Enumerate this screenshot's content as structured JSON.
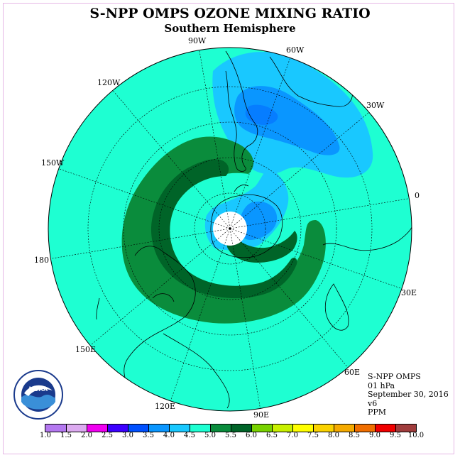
{
  "header": {
    "title": "S-NPP OMPS OZONE MIXING RATIO",
    "subtitle": "Southern Hemisphere"
  },
  "map": {
    "projection": "polar stereographic, South Pole centered",
    "longitude_labels": [
      "90W",
      "60W",
      "30W",
      "0",
      "30E",
      "60E",
      "90E",
      "120E",
      "150E",
      "180",
      "150W",
      "120W"
    ],
    "colors": {
      "ocean_background": "#1effd2",
      "band_5_0_to_5_5": "#0a8c3c",
      "band_5_5_to_6_0": "#006428",
      "band_4_0_to_4_5": "#19c8ff",
      "band_3_5_to_4_0": "#0a96ff",
      "pole_fill": "#ffffff"
    }
  },
  "info": {
    "instrument": "S-NPP OMPS",
    "level": "01 hPa",
    "date": "September 30, 2016",
    "version": "v6",
    "units": "PPM"
  },
  "colorbar": {
    "labels": [
      "1.0",
      "1.5",
      "2.0",
      "2.5",
      "3.0",
      "3.5",
      "4.0",
      "4.5",
      "5.0",
      "5.5",
      "6.0",
      "6.5",
      "7.0",
      "7.5",
      "8.0",
      "8.5",
      "9.0",
      "9.5",
      "10.0"
    ],
    "colors": [
      "#b478f0",
      "#dcaaf0",
      "#f000f0",
      "#3c00ff",
      "#0050ff",
      "#0a96ff",
      "#19c8ff",
      "#1effd2",
      "#0a8c3c",
      "#006428",
      "#78d200",
      "#c8f000",
      "#ffff00",
      "#fad200",
      "#f5aa00",
      "#f06e00",
      "#f00000",
      "#a03c3c"
    ]
  },
  "logo": {
    "text": "NOAA",
    "ring_text": "NATIONAL OCEANIC AND ATMOSPHERIC ADMINISTRATION · U.S. DEPARTMENT OF COMMERCE"
  }
}
